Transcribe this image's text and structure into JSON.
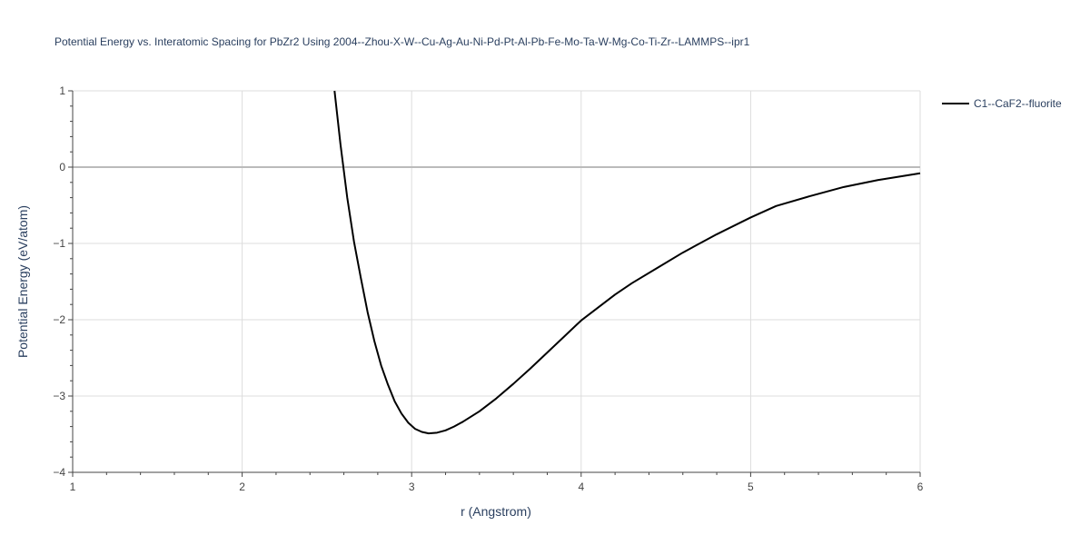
{
  "chart_data": {
    "type": "line",
    "title": "Potential Energy vs. Interatomic Spacing for PbZr2 Using 2004--Zhou-X-W--Cu-Ag-Au-Ni-Pd-Pt-Al-Pb-Fe-Mo-Ta-W-Mg-Co-Ti-Zr--LAMMPS--ipr1",
    "xlabel": "r (Angstrom)",
    "ylabel": "Potential Energy (eV/atom)",
    "xlim": [
      1,
      6
    ],
    "ylim": [
      -4,
      1
    ],
    "x_ticks": [
      1,
      2,
      3,
      4,
      5,
      6
    ],
    "y_ticks": [
      1,
      0,
      -1,
      -2,
      -3,
      -4
    ],
    "x_tick_labels": [
      "1",
      "2",
      "3",
      "4",
      "5",
      "6"
    ],
    "y_tick_labels": [
      "1",
      "0",
      "−1",
      "−2",
      "−3",
      "−4"
    ],
    "grid": true,
    "legend_position": "top-right",
    "series": [
      {
        "name": "C1--CaF2--fluorite",
        "color": "#000000",
        "x": [
          2.545,
          2.58,
          2.62,
          2.66,
          2.7,
          2.74,
          2.78,
          2.82,
          2.86,
          2.9,
          2.94,
          2.98,
          3.02,
          3.06,
          3.1,
          3.15,
          3.2,
          3.25,
          3.3,
          3.35,
          3.4,
          3.5,
          3.6,
          3.7,
          3.8,
          3.9,
          4.0,
          4.1,
          4.2,
          4.3,
          4.45,
          4.6,
          4.8,
          5.0,
          5.15,
          5.35,
          5.55,
          5.75,
          6.0
        ],
        "y": [
          1.0,
          0.3,
          -0.4,
          -0.98,
          -1.45,
          -1.9,
          -2.28,
          -2.6,
          -2.85,
          -3.07,
          -3.23,
          -3.35,
          -3.43,
          -3.47,
          -3.49,
          -3.48,
          -3.45,
          -3.4,
          -3.34,
          -3.27,
          -3.2,
          -3.03,
          -2.84,
          -2.64,
          -2.43,
          -2.22,
          -2.01,
          -1.84,
          -1.67,
          -1.52,
          -1.32,
          -1.12,
          -0.88,
          -0.66,
          -0.51,
          -0.38,
          -0.26,
          -0.17,
          -0.08
        ]
      }
    ]
  }
}
